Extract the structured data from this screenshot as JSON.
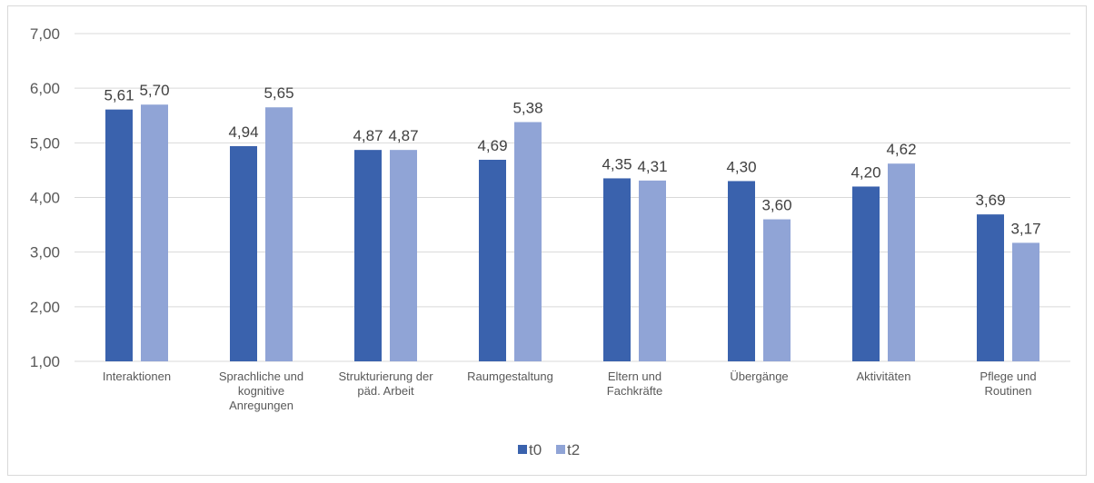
{
  "chart_data": {
    "type": "bar",
    "title": "",
    "xlabel": "",
    "ylabel": "",
    "ylim": [
      1,
      7
    ],
    "yticks": [
      "1,00",
      "2,00",
      "3,00",
      "4,00",
      "5,00",
      "6,00",
      "7,00"
    ],
    "grid": true,
    "legend_position": "bottom",
    "categories": [
      [
        "Interaktionen"
      ],
      [
        "Sprachliche und",
        "kognitive",
        "Anregungen"
      ],
      [
        "Strukturierung der",
        "päd. Arbeit"
      ],
      [
        "Raumgestaltung"
      ],
      [
        "Eltern und",
        "Fachkräfte"
      ],
      [
        "Übergänge"
      ],
      [
        "Aktivitäten"
      ],
      [
        "Pflege und",
        "Routinen"
      ]
    ],
    "series": [
      {
        "name": "t0",
        "color": "#3a62ad",
        "values": [
          5.61,
          4.94,
          4.87,
          4.69,
          4.35,
          4.3,
          4.2,
          3.69
        ],
        "labels": [
          "5,61",
          "4,94",
          "4,87",
          "4,69",
          "4,35",
          "4,30",
          "4,20",
          "3,69"
        ]
      },
      {
        "name": "t2",
        "color": "#90a4d6",
        "values": [
          5.7,
          5.65,
          4.87,
          5.38,
          4.31,
          3.6,
          4.62,
          3.17
        ],
        "labels": [
          "5,70",
          "5,65",
          "4,87",
          "5,38",
          "4,31",
          "3,60",
          "4,62",
          "3,17"
        ]
      }
    ]
  }
}
